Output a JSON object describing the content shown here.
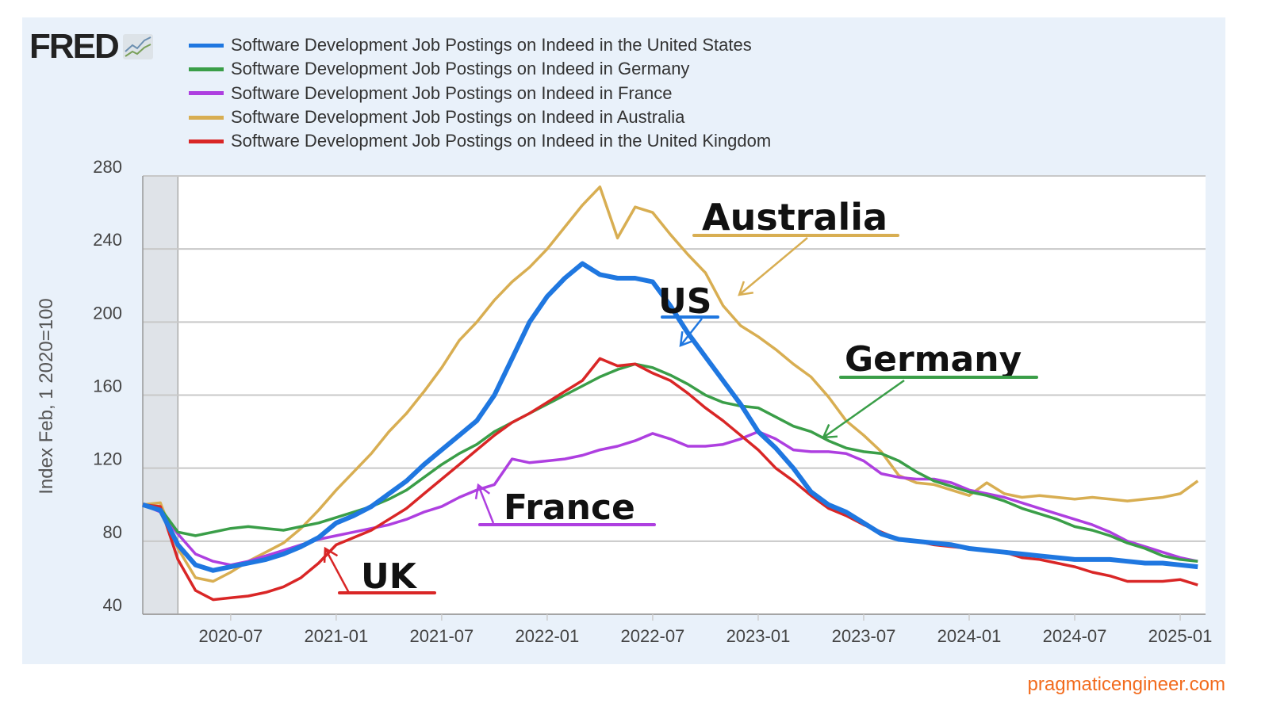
{
  "logo": "FRED",
  "watermark": "pragmaticengineer.com",
  "chart_data": {
    "type": "line",
    "title": "",
    "xlabel": "",
    "ylabel": "Index Feb, 1 2020=100",
    "ylim": [
      40,
      280
    ],
    "yticks": [
      40,
      80,
      120,
      160,
      200,
      240,
      280
    ],
    "grid": true,
    "legend_position": "top",
    "x_start": "2020-02",
    "x_end": "2025-02",
    "x_frequency": "monthly",
    "xtick_labels": [
      "2020-07",
      "2021-01",
      "2021-07",
      "2022-01",
      "2022-07",
      "2023-01",
      "2023-07",
      "2024-01",
      "2024-07",
      "2025-01"
    ],
    "recession_shading": [
      "2020-02",
      "2020-04"
    ],
    "series": [
      {
        "name": "Software Development Job Postings on Indeed in the United States",
        "color": "#1f77e0",
        "values": [
          100,
          97,
          78,
          67,
          64,
          66,
          68,
          70,
          73,
          77,
          82,
          90,
          94,
          99,
          106,
          113,
          122,
          130,
          138,
          146,
          160,
          180,
          200,
          214,
          224,
          232,
          226,
          224,
          224,
          222,
          209,
          194,
          181,
          168,
          155,
          140,
          131,
          120,
          107,
          100,
          96,
          90,
          84,
          81,
          80,
          79,
          78,
          76,
          75,
          74,
          73,
          72,
          71,
          70,
          70,
          70,
          69,
          68,
          68,
          67,
          66
        ]
      },
      {
        "name": "Software Development Job Postings on Indeed in Germany",
        "color": "#3a9e48",
        "values": [
          100,
          98,
          85,
          83,
          85,
          87,
          88,
          87,
          86,
          88,
          90,
          93,
          96,
          99,
          103,
          108,
          115,
          122,
          128,
          133,
          140,
          145,
          150,
          155,
          160,
          165,
          170,
          174,
          177,
          175,
          171,
          166,
          160,
          156,
          154,
          153,
          148,
          143,
          140,
          135,
          131,
          129,
          128,
          124,
          118,
          113,
          110,
          107,
          105,
          102,
          98,
          95,
          92,
          88,
          86,
          83,
          79,
          76,
          72,
          70,
          69
        ]
      },
      {
        "name": "Software Development Job Postings on Indeed in France",
        "color": "#ae3fe0",
        "values": [
          100,
          96,
          84,
          73,
          69,
          67,
          69,
          72,
          75,
          78,
          81,
          83,
          85,
          87,
          89,
          92,
          96,
          99,
          104,
          108,
          111,
          125,
          123,
          124,
          125,
          127,
          130,
          132,
          135,
          139,
          136,
          132,
          132,
          133,
          136,
          140,
          136,
          130,
          129,
          129,
          128,
          124,
          117,
          115,
          114,
          114,
          112,
          108,
          106,
          104,
          101,
          98,
          95,
          92,
          89,
          85,
          80,
          77,
          74,
          71,
          69
        ]
      },
      {
        "name": "Software Development Job Postings on Indeed in Australia",
        "color": "#d8ae52",
        "values": [
          100,
          101,
          76,
          60,
          58,
          63,
          69,
          74,
          79,
          87,
          97,
          108,
          118,
          128,
          140,
          150,
          162,
          175,
          190,
          200,
          212,
          222,
          230,
          240,
          252,
          264,
          274,
          246,
          263,
          260,
          248,
          237,
          227,
          209,
          198,
          192,
          185,
          177,
          170,
          159,
          146,
          138,
          129,
          116,
          112,
          111,
          108,
          105,
          112,
          106,
          104,
          105,
          104,
          103,
          104,
          103,
          102,
          103,
          104,
          106,
          113
        ]
      },
      {
        "name": "Software Development Job Postings on Indeed in the United Kingdom",
        "color": "#d92626",
        "values": [
          100,
          99,
          70,
          53,
          48,
          49,
          50,
          52,
          55,
          60,
          68,
          78,
          82,
          86,
          92,
          98,
          106,
          114,
          122,
          130,
          138,
          145,
          150,
          156,
          162,
          168,
          180,
          176,
          177,
          172,
          168,
          161,
          153,
          146,
          138,
          130,
          120,
          113,
          105,
          98,
          94,
          89,
          85,
          81,
          80,
          78,
          77,
          76,
          75,
          74,
          71,
          70,
          68,
          66,
          63,
          61,
          58,
          58,
          58,
          59,
          56
        ]
      }
    ]
  },
  "annotations": [
    {
      "text": "Australia",
      "color": "#d8ae52"
    },
    {
      "text": "US",
      "color": "#1f77e0"
    },
    {
      "text": "Germany",
      "color": "#3a9e48"
    },
    {
      "text": "France",
      "color": "#ae3fe0"
    },
    {
      "text": "UK",
      "color": "#d92626"
    }
  ]
}
